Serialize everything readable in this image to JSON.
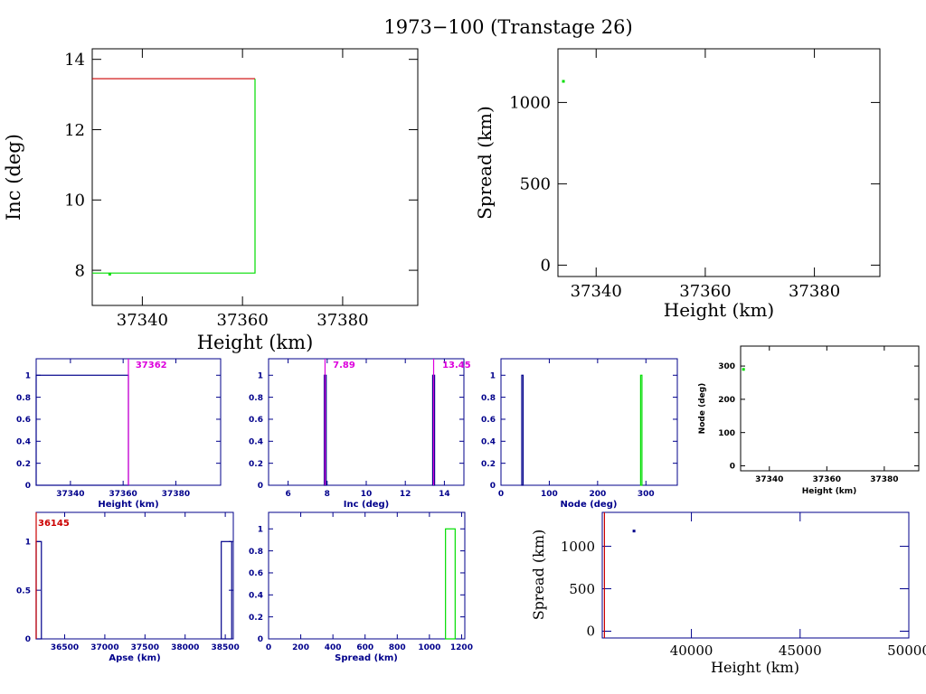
{
  "title": "1973−100 (Transtage 26)",
  "colors": {
    "black": "#000000",
    "navy": "#00008b",
    "green": "#00dd00",
    "red": "#cc0000",
    "magenta": "#dd00dd",
    "frame_small": "#0000aa"
  },
  "chart_data": [
    {
      "id": "p1",
      "type": "line",
      "xlabel": "Height (km)",
      "ylabel": "Inc (deg)",
      "xlim": [
        37330,
        37395
      ],
      "ylim": [
        7,
        14.3
      ],
      "xticks": [
        "37340",
        "37360",
        "37380"
      ],
      "xtickvals": [
        37340,
        37360,
        37380
      ],
      "yticks": [
        "8",
        "10",
        "12",
        "14"
      ],
      "ytickvals": [
        8,
        10,
        12,
        14
      ],
      "series": [
        {
          "color": "green",
          "points": [
            [
              37330,
              7.92
            ],
            [
              37362.5,
              7.92
            ],
            [
              37362.5,
              13.45
            ]
          ]
        },
        {
          "color": "red",
          "points": [
            [
              37330,
              13.45
            ],
            [
              37362.5,
              13.45
            ]
          ]
        }
      ],
      "markers": [
        {
          "x": 37333.5,
          "y": 7.89,
          "color": "green"
        }
      ]
    },
    {
      "id": "p2",
      "type": "scatter",
      "xlabel": "Height (km)",
      "ylabel": "Spread (km)",
      "xlim": [
        37333,
        37392
      ],
      "ylim": [
        -70,
        1330
      ],
      "xticks": [
        "37340",
        "37360",
        "37380"
      ],
      "xtickvals": [
        37340,
        37360,
        37380
      ],
      "yticks": [
        "0",
        "500",
        "1000"
      ],
      "ytickvals": [
        0,
        500,
        1000
      ],
      "markers": [
        {
          "x": 37334,
          "y": 1130,
          "color": "green"
        }
      ]
    },
    {
      "id": "p3",
      "type": "bar",
      "xlabel": "Height (km)",
      "xlim": [
        37327,
        37397
      ],
      "ylim": [
        0,
        1.15
      ],
      "xticks": [
        "37340",
        "37360",
        "37380"
      ],
      "xtickvals": [
        37340,
        37360,
        37380
      ],
      "yticks": [
        "0",
        "0.2",
        "0.4",
        "0.6",
        "0.8",
        "1"
      ],
      "ytickvals": [
        0,
        0.2,
        0.4,
        0.6,
        0.8,
        1
      ],
      "bars": [
        {
          "x0": 37327,
          "x1": 37362,
          "value": 1,
          "color": "navy"
        }
      ],
      "vlines": [
        {
          "x": 37362,
          "color": "magenta"
        }
      ],
      "annotations": [
        {
          "text": "37362",
          "color": "magenta",
          "x": 37364,
          "y": 1.1
        }
      ]
    },
    {
      "id": "p4",
      "type": "bar",
      "xlabel": "Inc (deg)",
      "xlim": [
        5,
        15
      ],
      "ylim": [
        0,
        1.15
      ],
      "xticks": [
        "6",
        "8",
        "10",
        "12",
        "14"
      ],
      "xtickvals": [
        6,
        8,
        10,
        12,
        14
      ],
      "yticks": [
        "0",
        "0.2",
        "0.4",
        "0.6",
        "0.8",
        "1"
      ],
      "ytickvals": [
        0,
        0.2,
        0.4,
        0.6,
        0.8,
        1
      ],
      "bars": [
        {
          "x0": 7.85,
          "x1": 7.95,
          "value": 1,
          "color": "navy"
        },
        {
          "x0": 13.4,
          "x1": 13.5,
          "value": 1,
          "color": "navy"
        }
      ],
      "vlines": [
        {
          "x": 7.89,
          "color": "magenta"
        },
        {
          "x": 13.45,
          "color": "magenta"
        }
      ],
      "annotations": [
        {
          "text": "7.89",
          "color": "magenta",
          "x": 8.2,
          "y": 1.1
        },
        {
          "text": "13.45",
          "color": "magenta",
          "x": 13.8,
          "y": 1.1
        }
      ]
    },
    {
      "id": "p5",
      "type": "bar",
      "xlabel": "Node (deg)",
      "xlim": [
        0,
        365
      ],
      "ylim": [
        0,
        1.15
      ],
      "xticks": [
        "0",
        "100",
        "200",
        "300"
      ],
      "xtickvals": [
        0,
        100,
        200,
        300
      ],
      "yticks": [
        "0",
        "0.2",
        "0.4",
        "0.6",
        "0.8",
        "1"
      ],
      "ytickvals": [
        0,
        0.2,
        0.4,
        0.6,
        0.8,
        1
      ],
      "bars": [
        {
          "x0": 43,
          "x1": 45,
          "value": 1,
          "color": "navy"
        },
        {
          "x0": 289,
          "x1": 291,
          "value": 1,
          "color": "green"
        }
      ]
    },
    {
      "id": "p6",
      "type": "scatter",
      "xlabel": "Height (km)",
      "ylabel": "Node (deg)",
      "xlim": [
        37330,
        37392
      ],
      "ylim": [
        -15,
        360
      ],
      "xticks": [
        "37340",
        "37360",
        "37380"
      ],
      "xtickvals": [
        37340,
        37360,
        37380
      ],
      "yticks": [
        "0",
        "100",
        "200",
        "300"
      ],
      "ytickvals": [
        0,
        100,
        200,
        300
      ],
      "markers": [
        {
          "x": 37331,
          "y": 290,
          "color": "green"
        }
      ]
    },
    {
      "id": "p7",
      "type": "bar",
      "xlabel": "Apse (km)",
      "xlim": [
        36145,
        38600
      ],
      "ylim": [
        0,
        1.3
      ],
      "xticks": [
        "36500",
        "37000",
        "37500",
        "38000",
        "38500"
      ],
      "xtickvals": [
        36500,
        37000,
        37500,
        38000,
        38500
      ],
      "yticks": [
        "0",
        "0.5",
        "1"
      ],
      "ytickvals": [
        0,
        0.5,
        1
      ],
      "bars": [
        {
          "x0": 36145,
          "x1": 36210,
          "value": 1,
          "color": "navy"
        },
        {
          "x0": 38450,
          "x1": 38580,
          "value": 1,
          "color": "navy"
        }
      ],
      "vlines": [
        {
          "x": 36145,
          "color": "red"
        }
      ],
      "annotations": [
        {
          "text": "36145",
          "color": "red",
          "x": 36145,
          "y": 1.2
        }
      ]
    },
    {
      "id": "p8",
      "type": "bar",
      "xlabel": "Spread (km)",
      "xlim": [
        0,
        1220
      ],
      "ylim": [
        0,
        1.15
      ],
      "xticks": [
        "0",
        "200",
        "400",
        "600",
        "800",
        "1000",
        "1200"
      ],
      "xtickvals": [
        0,
        200,
        400,
        600,
        800,
        1000,
        1200
      ],
      "yticks": [
        "0",
        "0.2",
        "0.4",
        "0.6",
        "0.8",
        "1"
      ],
      "ytickvals": [
        0,
        0.2,
        0.4,
        0.6,
        0.8,
        1
      ],
      "bars": [
        {
          "x0": 1100,
          "x1": 1160,
          "value": 1,
          "color": "green"
        }
      ]
    },
    {
      "id": "p9",
      "type": "scatter",
      "xlabel": "Height (km)",
      "ylabel": "Spread (km)",
      "xlim": [
        35900,
        50000
      ],
      "ylim": [
        -80,
        1400
      ],
      "xticks": [
        "40000",
        "45000",
        "50000"
      ],
      "xtickvals": [
        40000,
        45000,
        50000
      ],
      "yticks": [
        "0",
        "500",
        "1000"
      ],
      "ytickvals": [
        0,
        500,
        1000
      ],
      "markers": [
        {
          "x": 37360,
          "y": 1180,
          "color": "navy"
        }
      ],
      "vlines": [
        {
          "x": 36000,
          "color": "red"
        }
      ]
    }
  ]
}
